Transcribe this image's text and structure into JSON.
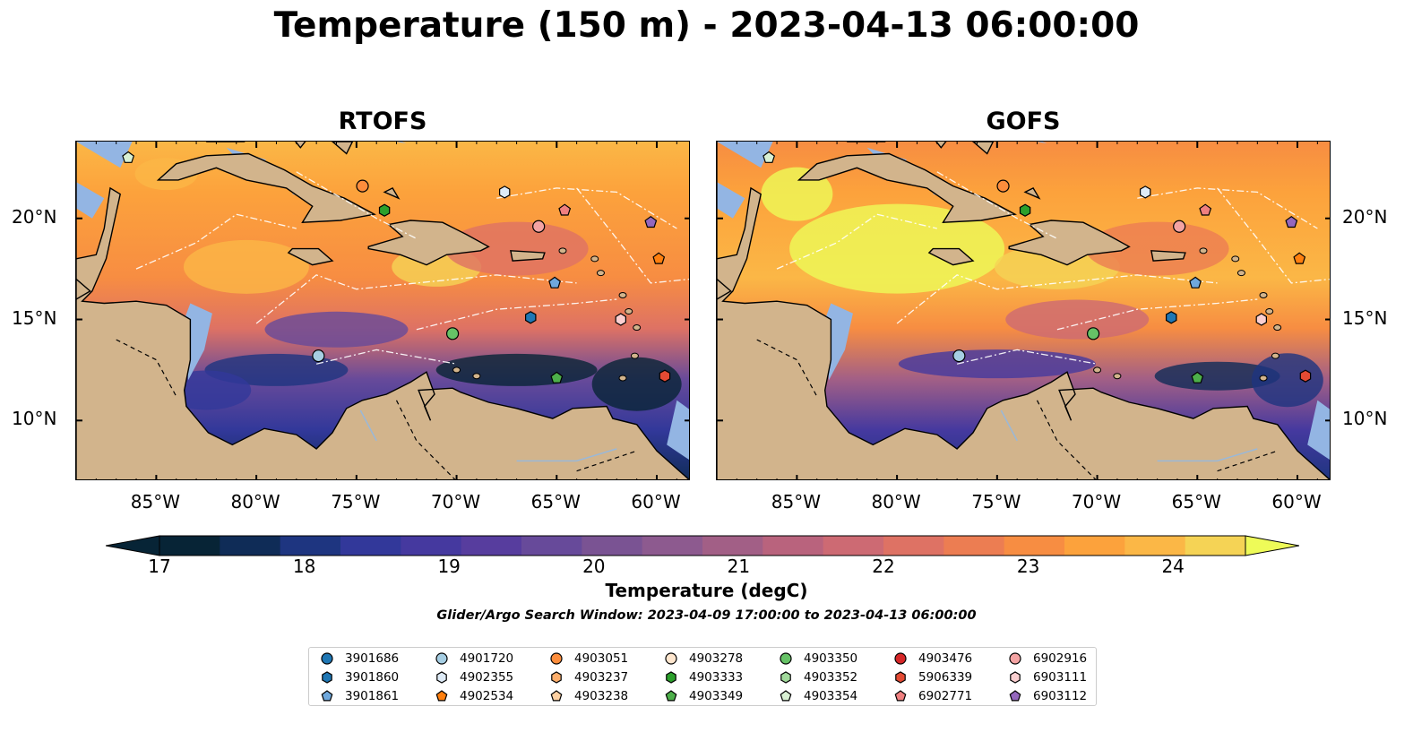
{
  "title": "Temperature (150 m) - 2023-04-13 06:00:00",
  "panels": [
    {
      "title": "RTOFS"
    },
    {
      "title": "GOFS"
    }
  ],
  "lat_ticks": [
    {
      "value": 20,
      "label": "20°N"
    },
    {
      "value": 15,
      "label": "15°N"
    },
    {
      "value": 10,
      "label": "10°N"
    }
  ],
  "lon_ticks": [
    {
      "value": -85,
      "label": "85°W"
    },
    {
      "value": -80,
      "label": "80°W"
    },
    {
      "value": -75,
      "label": "75°W"
    },
    {
      "value": -70,
      "label": "70°W"
    },
    {
      "value": -65,
      "label": "65°W"
    },
    {
      "value": -60,
      "label": "60°W"
    }
  ],
  "map_extent": {
    "lon": [
      -89,
      -58.3
    ],
    "lat": [
      7,
      23.8
    ]
  },
  "colorbar": {
    "label": "Temperature (degC)",
    "min": 17,
    "max": 24.5,
    "ticks": [
      "17",
      "18",
      "19",
      "20",
      "21",
      "22",
      "23",
      "24"
    ],
    "colors": [
      "#072436",
      "#0f2c57",
      "#1e3580",
      "#32389a",
      "#45399f",
      "#573d9e",
      "#674a9a",
      "#7a5393",
      "#8d5a8f",
      "#a25f86",
      "#b9637d",
      "#cd6a73",
      "#de7264",
      "#ec7d52",
      "#f78d42",
      "#fca23c",
      "#fbb746",
      "#f5d355"
    ],
    "extend_low": "#072436",
    "extend_high": "#eefb58"
  },
  "search_window": "Glider/Argo Search Window: 2023-04-09 17:00:00 to 2023-04-13 06:00:00",
  "floats": [
    {
      "id": "3901686",
      "marker": "circle",
      "color": "#1f77b4"
    },
    {
      "id": "3901860",
      "marker": "hexagon",
      "color": "#1f77b4"
    },
    {
      "id": "3901861",
      "marker": "pentagon",
      "color": "#6fa8dc",
      "lon": -65.1,
      "lat": 16.8
    },
    {
      "id": "4901720",
      "marker": "circle",
      "color": "#a6cee3",
      "lon": -76.9,
      "lat": 13.2
    },
    {
      "id": "4902355",
      "marker": "hexagon",
      "color": "#deebf7",
      "lon": -67.6,
      "lat": 21.3
    },
    {
      "id": "4902534",
      "marker": "pentagon",
      "color": "#ff7f0e",
      "lon": -59.9,
      "lat": 18.0
    },
    {
      "id": "4903051",
      "marker": "circle",
      "color": "#fd8d3c",
      "lon": -74.7,
      "lat": 21.6
    },
    {
      "id": "4903237",
      "marker": "hexagon",
      "color": "#fdae6b"
    },
    {
      "id": "4903238",
      "marker": "pentagon",
      "color": "#fdd0a2"
    },
    {
      "id": "4903278",
      "marker": "circle",
      "color": "#fee6ce"
    },
    {
      "id": "4903333",
      "marker": "hexagon",
      "color": "#2ca02c",
      "lon": -73.6,
      "lat": 20.4
    },
    {
      "id": "4903349",
      "marker": "pentagon",
      "color": "#4daf4a",
      "lon": -65.0,
      "lat": 12.1
    },
    {
      "id": "4903350",
      "marker": "circle",
      "color": "#66c266",
      "lon": -70.2,
      "lat": 14.3
    },
    {
      "id": "4903352",
      "marker": "hexagon",
      "color": "#a1d99b"
    },
    {
      "id": "4903354",
      "marker": "pentagon",
      "color": "#d9f0d3",
      "lon": -86.4,
      "lat": 23.0
    },
    {
      "id": "4903476",
      "marker": "circle",
      "color": "#d62728"
    },
    {
      "id": "5906339",
      "marker": "hexagon",
      "color": "#e34a33",
      "lon": -59.6,
      "lat": 12.2
    },
    {
      "id": "6902771",
      "marker": "pentagon",
      "color": "#f08080",
      "lon": -64.6,
      "lat": 20.4
    },
    {
      "id": "6902916",
      "marker": "circle",
      "color": "#f4a3a3",
      "lon": -65.9,
      "lat": 19.6
    },
    {
      "id": "6903111",
      "marker": "hexagon",
      "color": "#fbcfd0",
      "lon": -61.8,
      "lat": 15.0
    },
    {
      "id": "6903112",
      "marker": "pentagon",
      "color": "#9467bd",
      "lon": -60.3,
      "lat": 19.8
    },
    {
      "id": "3901860b",
      "marker": "hexagon",
      "color": "#1f77b4",
      "lon": -66.3,
      "lat": 15.1
    }
  ],
  "legend_ids": [
    "3901686",
    "3901860",
    "3901861",
    "4901720",
    "4902355",
    "4902534",
    "4903051",
    "4903237",
    "4903238",
    "4903278",
    "4903333",
    "4903349",
    "4903350",
    "4903352",
    "4903354",
    "4903476",
    "5906339",
    "6902771",
    "6902916",
    "6903111",
    "6903112"
  ]
}
